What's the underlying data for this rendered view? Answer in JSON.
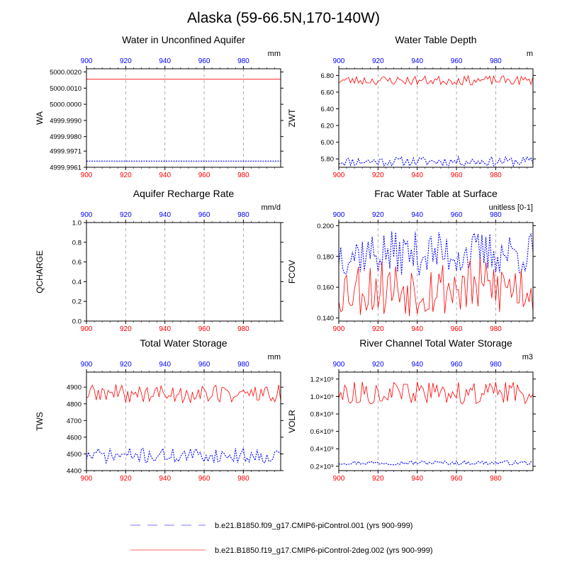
{
  "figure": {
    "title": "Alaska (59-66.5N,170-140W)",
    "colors": {
      "red": "#ff0000",
      "blue": "#0000ff",
      "grid": "#999999",
      "axis": "#000000"
    },
    "legend": [
      {
        "label": "b.e21.B1850.f09_g17.CMIP6-piControl.001 (yrs 900-999)",
        "color": "#0000ff",
        "style": "long-dash"
      },
      {
        "label": "b.e21.B1850.f19_g17.CMIP6-piControl-2deg.002 (yrs 900-999)",
        "color": "#ff0000",
        "style": "solid"
      }
    ]
  },
  "chart_data": [
    {
      "type": "line",
      "title": "Water in Unconfined Aquifer",
      "ylabel": "WA",
      "units": "mm",
      "xlim": [
        900,
        999
      ],
      "ylim": [
        4999.9961,
        5000.0022
      ],
      "x_ticks": [
        900,
        920,
        940,
        960,
        980
      ],
      "y_ticks": [
        "5000.0020",
        "5000.0010",
        "5000.0000",
        "4999.9990",
        "4999.9980",
        "4999.9971",
        "4999.9961"
      ],
      "y_tick_values": [
        5000.002,
        5000.001,
        5000.0,
        4999.999,
        4999.998,
        4999.9971,
        4999.9961
      ],
      "grid": "vertical dashed",
      "series": [
        {
          "name": "b.e21.B1850.f09_g17.CMIP6-piControl.001",
          "color": "#0000ff",
          "style": "dotted",
          "constant": 4999.99648
        },
        {
          "name": "b.e21.B1850.f19_g17.CMIP6-piControl-2deg.002",
          "color": "#ff0000",
          "style": "solid",
          "constant": 5000.00155
        }
      ]
    },
    {
      "type": "line",
      "title": "Water Table Depth",
      "ylabel": "ZWT",
      "units": "m",
      "xlim": [
        900,
        999
      ],
      "ylim": [
        5.7,
        6.88
      ],
      "x_ticks": [
        900,
        920,
        940,
        960,
        980
      ],
      "y_ticks": [
        "6.80",
        "6.60",
        "6.40",
        "6.20",
        "6.00",
        "5.80"
      ],
      "y_tick_values": [
        6.8,
        6.6,
        6.4,
        6.2,
        6.0,
        5.8
      ],
      "grid": "vertical dashed",
      "series": [
        {
          "name": "b.e21.B1850.f09_g17.CMIP6-piControl.001",
          "color": "#0000ff",
          "style": "dotted",
          "base": 5.77,
          "amp": 0.035,
          "seed": 11
        },
        {
          "name": "b.e21.B1850.f19_g17.CMIP6-piControl-2deg.002",
          "color": "#ff0000",
          "style": "solid",
          "base": 6.74,
          "amp": 0.035,
          "seed": 23
        }
      ]
    },
    {
      "type": "line",
      "title": "Aquifer Recharge Rate",
      "ylabel": "QCHARGE",
      "units": "mm/d",
      "xlim": [
        900,
        999
      ],
      "ylim": [
        0,
        1
      ],
      "x_ticks": [
        900,
        920,
        940,
        960,
        980
      ],
      "y_ticks": [
        "1.0",
        "0.8",
        "0.6",
        "0.4",
        "0.2",
        "0.0"
      ],
      "y_tick_values": [
        1.0,
        0.8,
        0.6,
        0.4,
        0.2,
        0.0
      ],
      "grid": "vertical dashed",
      "series": [
        {
          "name": "b.e21.B1850.f09_g17.CMIP6-piControl.001",
          "color": "#0000ff",
          "style": "dotted",
          "constant": 0.0
        },
        {
          "name": "b.e21.B1850.f19_g17.CMIP6-piControl-2deg.002",
          "color": "#ff0000",
          "style": "solid",
          "constant": 0.0
        }
      ]
    },
    {
      "type": "line",
      "title": "Frac Water Table at Surface",
      "ylabel": "FCOV",
      "units": "unitless [0-1]",
      "xlim": [
        900,
        999
      ],
      "ylim": [
        0.138,
        0.202
      ],
      "x_ticks": [
        900,
        920,
        940,
        960,
        980
      ],
      "y_ticks": [
        "0.200",
        "0.180",
        "0.160",
        "0.140"
      ],
      "y_tick_values": [
        0.2,
        0.18,
        0.16,
        0.14
      ],
      "grid": "vertical dashed",
      "series": [
        {
          "name": "b.e21.B1850.f09_g17.CMIP6-piControl.001",
          "color": "#0000ff",
          "style": "dotted",
          "base": 0.182,
          "amp": 0.009,
          "seed": 37
        },
        {
          "name": "b.e21.B1850.f19_g17.CMIP6-piControl-2deg.002",
          "color": "#ff0000",
          "style": "solid",
          "base": 0.16,
          "amp": 0.012,
          "seed": 53
        }
      ]
    },
    {
      "type": "line",
      "title": "Total Water Storage",
      "ylabel": "TWS",
      "units": "mm",
      "xlim": [
        900,
        999
      ],
      "ylim": [
        4400,
        4990
      ],
      "x_ticks": [
        900,
        920,
        940,
        960,
        980
      ],
      "y_ticks": [
        "4900",
        "4800",
        "4700",
        "4600",
        "4500",
        "4400"
      ],
      "y_tick_values": [
        4900,
        4800,
        4700,
        4600,
        4500,
        4400
      ],
      "grid": "vertical dashed",
      "series": [
        {
          "name": "b.e21.B1850.f09_g17.CMIP6-piControl.001",
          "color": "#0000ff",
          "style": "dotted",
          "base": 4490,
          "amp": 28,
          "seed": 71
        },
        {
          "name": "b.e21.B1850.f19_g17.CMIP6-piControl-2deg.002",
          "color": "#ff0000",
          "style": "solid",
          "base": 4860,
          "amp": 35,
          "seed": 89
        }
      ]
    },
    {
      "type": "line",
      "title": "River Channel Total Water Storage",
      "ylabel": "VOLR",
      "units": "m3",
      "xlim": [
        900,
        999
      ],
      "ylim": [
        150000000,
        1280000000
      ],
      "x_ticks": [
        900,
        920,
        940,
        960,
        980
      ],
      "y_ticks": [
        "1.2×10⁹",
        "1.0×10⁹",
        "0.8×10⁹",
        "0.6×10⁹",
        "0.4×10⁹",
        "0.2×10⁹"
      ],
      "y_tick_values": [
        1200000000,
        1000000000,
        800000000,
        600000000,
        400000000,
        200000000
      ],
      "grid": "vertical dashed",
      "series": [
        {
          "name": "b.e21.B1850.f09_g17.CMIP6-piControl.001",
          "color": "#0000ff",
          "style": "dotted",
          "base": 240000000,
          "amp": 15000000,
          "seed": 97
        },
        {
          "name": "b.e21.B1850.f19_g17.CMIP6-piControl-2deg.002",
          "color": "#ff0000",
          "style": "solid",
          "base": 1040000000,
          "amp": 80000000,
          "seed": 113
        }
      ]
    }
  ]
}
